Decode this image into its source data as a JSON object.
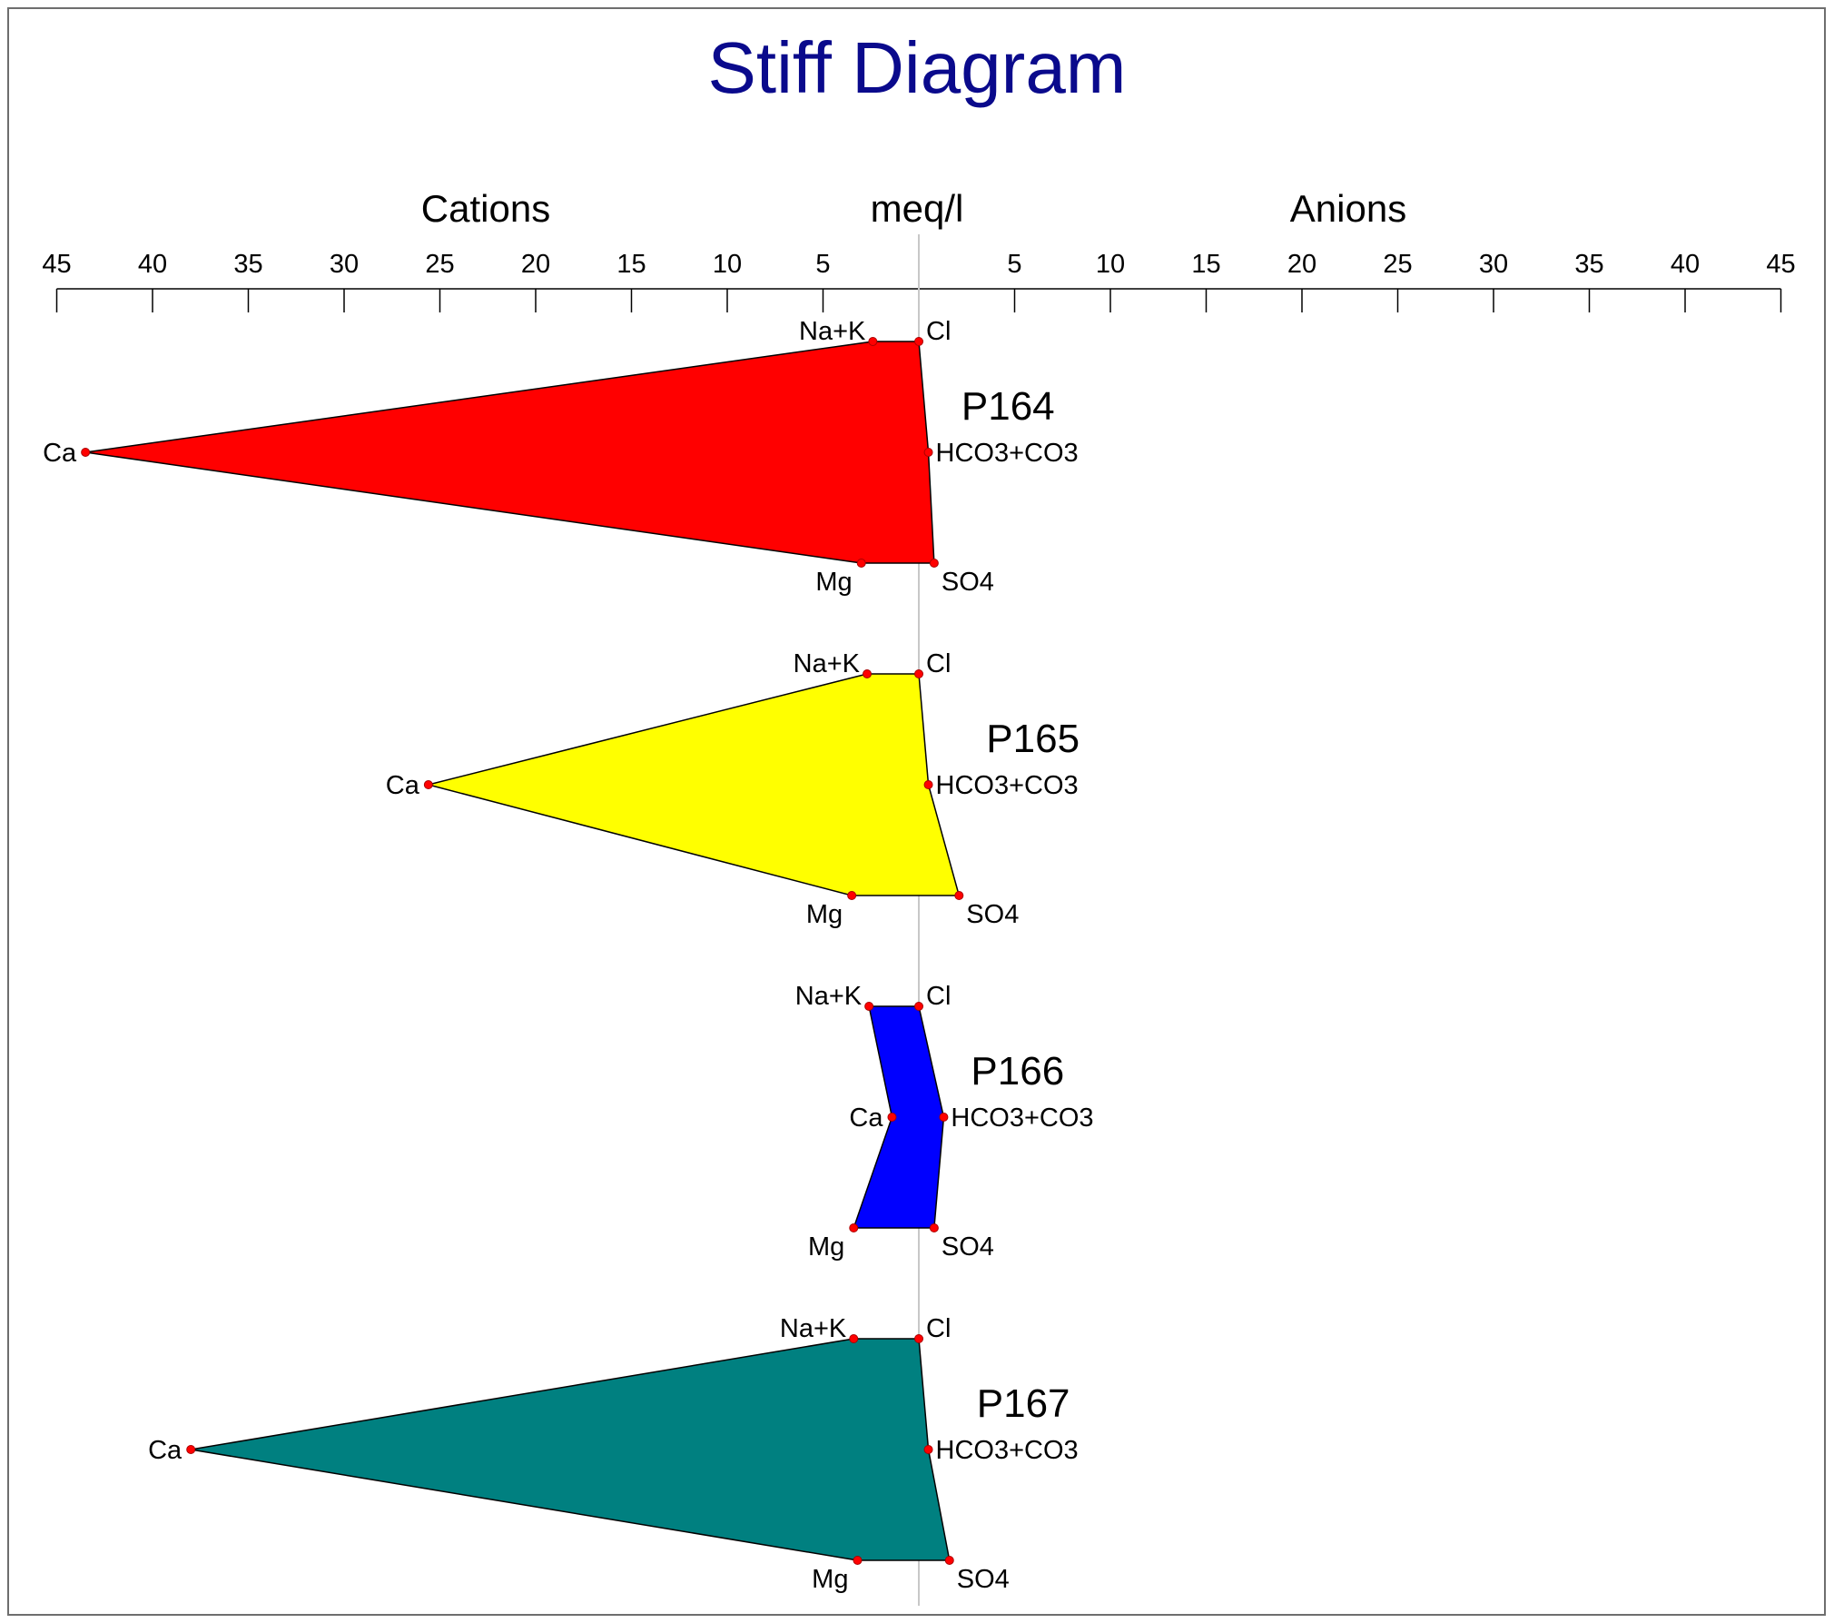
{
  "chart_data": {
    "type": "stiff",
    "title": "Stiff Diagram",
    "header_left": "Cations",
    "header_center": "meq/l",
    "header_right": "Anions",
    "axis": {
      "range": [
        -45,
        45
      ],
      "tick_values": [
        -45,
        -40,
        -35,
        -30,
        -25,
        -20,
        -15,
        -10,
        -5,
        5,
        10,
        15,
        20,
        25,
        30,
        35,
        40,
        45
      ],
      "tick_labels": [
        "45",
        "40",
        "35",
        "30",
        "25",
        "20",
        "15",
        "10",
        "5",
        "5",
        "10",
        "15",
        "20",
        "25",
        "30",
        "35",
        "40",
        "45"
      ]
    },
    "cation_labels": [
      "Na+K",
      "Ca",
      "Mg"
    ],
    "anion_labels": [
      "Cl",
      "HCO3+CO3",
      "SO4"
    ],
    "samples": [
      {
        "name": "P164",
        "color": "#ff0000",
        "cations": [
          2.4,
          43.5,
          3.0
        ],
        "anions": [
          0.0,
          0.5,
          0.8
        ]
      },
      {
        "name": "P165",
        "color": "#ffff00",
        "cations": [
          2.7,
          25.6,
          3.5
        ],
        "anions": [
          0.0,
          0.5,
          2.1
        ]
      },
      {
        "name": "P166",
        "color": "#0000ff",
        "cations": [
          2.6,
          1.4,
          3.4
        ],
        "anions": [
          0.0,
          1.3,
          0.8
        ]
      },
      {
        "name": "P167",
        "color": "#008080",
        "cations": [
          3.4,
          38.0,
          3.2
        ],
        "anions": [
          0.0,
          0.5,
          1.6
        ]
      }
    ]
  }
}
